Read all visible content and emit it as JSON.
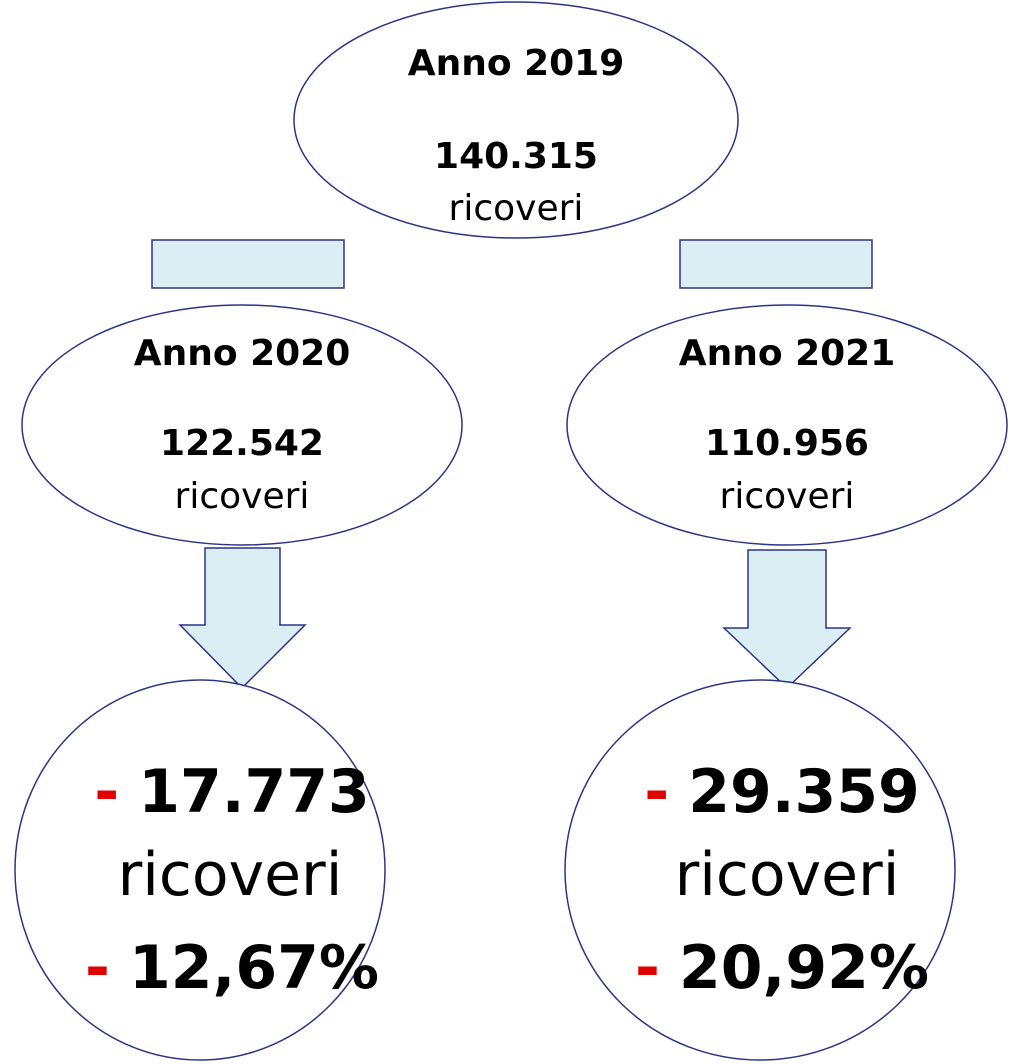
{
  "top": {
    "year": "Anno 2019",
    "count": "140.315",
    "unit": "ricoveri"
  },
  "left": {
    "year": "Anno 2020",
    "count": "122.542",
    "unit": "ricoveri"
  },
  "right": {
    "year": "Anno 2021",
    "count": "110.956",
    "unit": "ricoveri"
  },
  "left_result": {
    "sign": "-",
    "count": "17.773",
    "unit": "ricoveri",
    "pct_sign": "-",
    "pct": "12,67%"
  },
  "right_result": {
    "sign": "-",
    "count": "29.359",
    "unit": "ricoveri",
    "pct_sign": "-",
    "pct": "20,92%"
  }
}
